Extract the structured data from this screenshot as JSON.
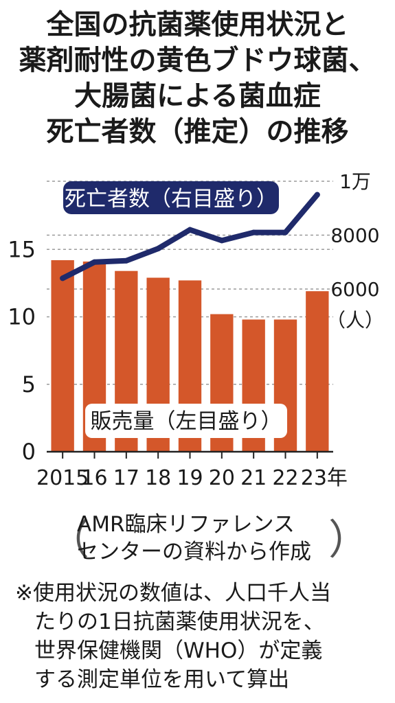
{
  "title_lines": [
    "全国の抗菌薬使用状況と",
    "薬剤耐性の黄色ブドウ球菌、",
    "大腸菌による菌血症",
    "死亡者数（推定）の推移"
  ],
  "chart_data": {
    "type": "bar",
    "categories": [
      "2015",
      "16",
      "17",
      "18",
      "19",
      "20",
      "21",
      "22",
      "23年"
    ],
    "series": [
      {
        "name": "販売量（左目盛り）",
        "type": "bar",
        "axis": "left",
        "values": [
          14.2,
          14.1,
          13.4,
          12.9,
          12.7,
          10.2,
          9.8,
          9.8,
          11.9
        ]
      },
      {
        "name": "死亡者数（右目盛り）",
        "type": "line",
        "axis": "right",
        "values": [
          6400,
          7000,
          7050,
          7500,
          8200,
          7800,
          8100,
          8100,
          9500
        ]
      }
    ],
    "left_axis": {
      "ticks": [
        "0",
        "5",
        "10",
        "15"
      ],
      "tick_values": [
        0,
        5,
        10,
        15
      ],
      "range": [
        0,
        20
      ]
    },
    "right_axis": {
      "ticks": [
        "6000",
        "8000",
        "1万"
      ],
      "tick_values": [
        6000,
        8000,
        10000
      ],
      "unit": "（人）",
      "range": [
        6000,
        10000
      ]
    },
    "colors": {
      "bar": "#d4572a",
      "line": "#1f2a6b",
      "label_bg": "#1f2a6b"
    }
  },
  "source_lines": [
    "AMR臨床リファレンス",
    "センターの資料から作成"
  ],
  "source_paren_open": "（",
  "source_paren_close": "）",
  "footnote_lines": [
    "※使用状況の数値は、人口千人当",
    "たりの1日抗菌薬使用状況を、",
    "世界保健機関（WHO）が定義",
    "する測定単位を用いて算出"
  ]
}
